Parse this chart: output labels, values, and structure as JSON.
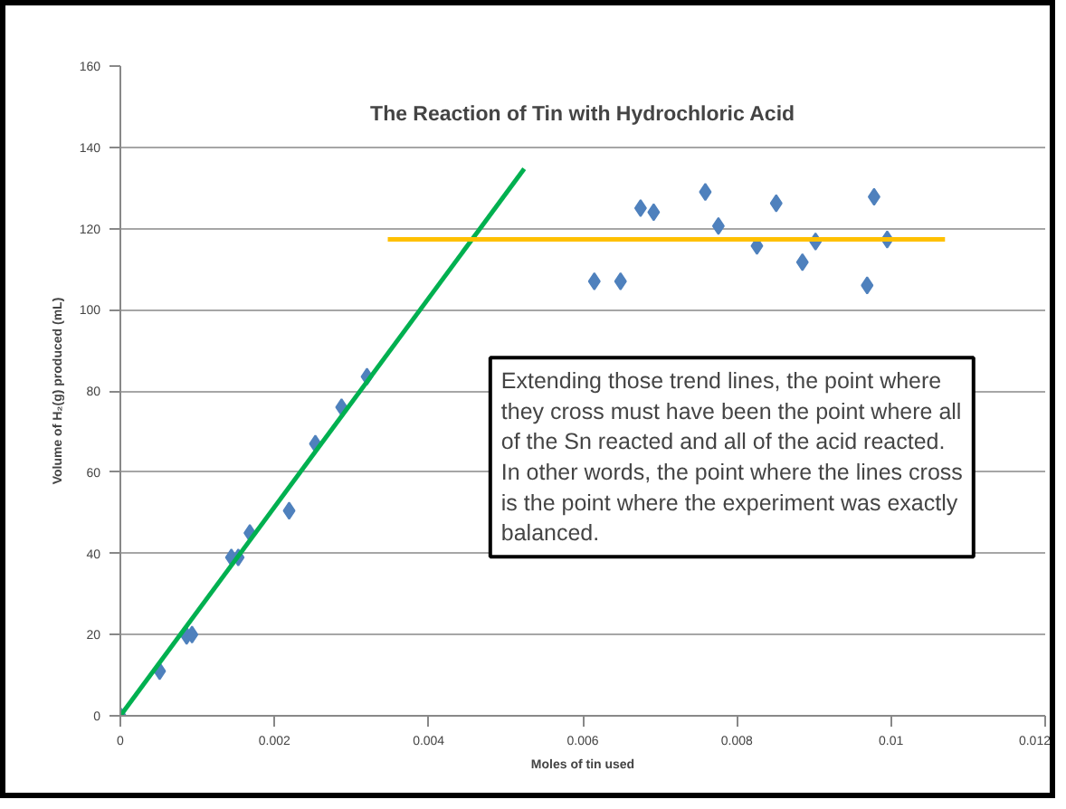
{
  "chart_data": {
    "type": "scatter",
    "title": "The Reaction of Tin with Hydrochloric Acid",
    "xlabel": "Moles of tin used",
    "ylabel": "Volume of H₂(g) produced (mL)",
    "xlim": [
      0,
      0.012
    ],
    "ylim": [
      0,
      160
    ],
    "xticks": [
      0,
      0.002,
      0.004,
      0.006,
      0.008,
      0.01,
      0.012
    ],
    "yticks": [
      0,
      20,
      40,
      60,
      80,
      100,
      120,
      140,
      160
    ],
    "grid": "y",
    "marker": "diamond",
    "series": [
      {
        "color": "#4f81bd",
        "x": [
          0,
          0.00051,
          0.00086,
          0.00093,
          0.00144,
          0.00153,
          0.00168,
          0.00219,
          0.00253,
          0.00287,
          0.0032,
          0.00615,
          0.00649,
          0.00675,
          0.00692,
          0.00759,
          0.00776,
          0.00826,
          0.00851,
          0.00885,
          0.00902,
          0.00969,
          0.00978,
          0.00995
        ],
        "values": [
          0,
          11,
          19.7,
          20,
          39,
          39,
          45,
          50.5,
          67,
          76,
          83.5,
          107,
          107,
          125,
          124,
          129,
          120.6,
          115.7,
          126.2,
          111.7,
          116.8,
          106,
          127.8,
          117.3
        ]
      },
      {
        "type": "line",
        "marker": "none",
        "color": "#00b050",
        "x": [
          0,
          0.00524
        ],
        "values": [
          0,
          134.7
        ]
      },
      {
        "type": "line",
        "marker": "none",
        "color": "#ffc000",
        "x": [
          0.00347,
          0.0107
        ],
        "values": [
          117.3,
          117.3
        ]
      }
    ],
    "annotations": [
      "Extending those trend lines, the point where they cross must have been the point where all of the Sn reacted and all of the acid reacted. In other words, the point where the lines cross is the point where the experiment was exactly balanced."
    ]
  }
}
